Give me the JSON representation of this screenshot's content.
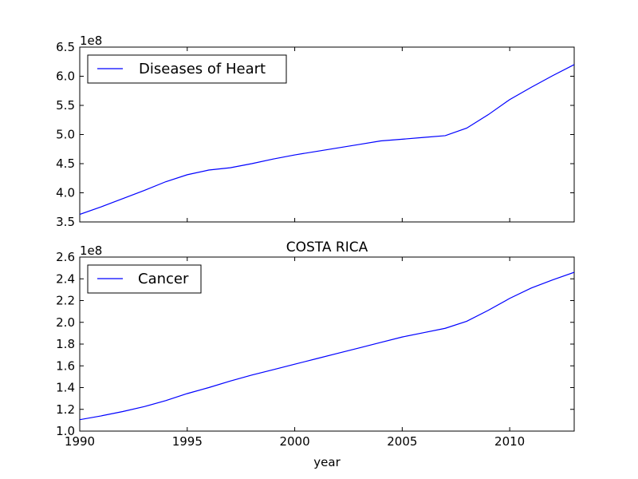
{
  "chart_data": [
    {
      "type": "line",
      "title": "",
      "xlabel": "",
      "ylabel": "",
      "offset_label": "1e8",
      "xlim": [
        1990,
        2013
      ],
      "ylim": [
        3.5,
        6.5
      ],
      "yticks": [
        3.5,
        4.0,
        4.5,
        5.0,
        5.5,
        6.0,
        6.5
      ],
      "ytick_labels": [
        "3.5",
        "4.0",
        "4.5",
        "5.0",
        "5.5",
        "6.0",
        "6.5"
      ],
      "xticks": [
        1990,
        1995,
        2000,
        2005,
        2010
      ],
      "xtick_labels": [
        "",
        "",
        "",
        "",
        ""
      ],
      "legend_position": "top-left",
      "series": [
        {
          "name": "Diseases of Heart",
          "color": "#0000ff",
          "x": [
            1990,
            1991,
            1992,
            1993,
            1994,
            1995,
            1996,
            1997,
            1998,
            1999,
            2000,
            2001,
            2002,
            2003,
            2004,
            2005,
            2006,
            2007,
            2008,
            2009,
            2010,
            2011,
            2012,
            2013
          ],
          "values": [
            3.63,
            3.76,
            3.9,
            4.04,
            4.19,
            4.31,
            4.39,
            4.43,
            4.5,
            4.58,
            4.65,
            4.71,
            4.77,
            4.83,
            4.89,
            4.92,
            4.95,
            4.98,
            5.11,
            5.34,
            5.6,
            5.81,
            6.01,
            6.2
          ]
        }
      ]
    },
    {
      "type": "line",
      "title": "COSTA RICA",
      "xlabel": "year",
      "ylabel": "",
      "offset_label": "1e8",
      "xlim": [
        1990,
        2013
      ],
      "ylim": [
        1.0,
        2.6
      ],
      "yticks": [
        1.0,
        1.2,
        1.4,
        1.6,
        1.8,
        2.0,
        2.2,
        2.4,
        2.6
      ],
      "ytick_labels": [
        "1.0",
        "1.2",
        "1.4",
        "1.6",
        "1.8",
        "2.0",
        "2.2",
        "2.4",
        "2.6"
      ],
      "xticks": [
        1990,
        1995,
        2000,
        2005,
        2010
      ],
      "xtick_labels": [
        "1990",
        "1995",
        "2000",
        "2005",
        "2010"
      ],
      "legend_position": "top-left",
      "series": [
        {
          "name": "Cancer",
          "color": "#0000ff",
          "x": [
            1990,
            1991,
            1992,
            1993,
            1994,
            1995,
            1996,
            1997,
            1998,
            1999,
            2000,
            2001,
            2002,
            2003,
            2004,
            2005,
            2006,
            2007,
            2008,
            2009,
            2010,
            2011,
            2012,
            2013
          ],
          "values": [
            1.105,
            1.14,
            1.18,
            1.225,
            1.28,
            1.345,
            1.4,
            1.46,
            1.515,
            1.565,
            1.615,
            1.665,
            1.715,
            1.765,
            1.815,
            1.865,
            1.905,
            1.945,
            2.01,
            2.11,
            2.22,
            2.315,
            2.39,
            2.46
          ]
        }
      ]
    }
  ]
}
